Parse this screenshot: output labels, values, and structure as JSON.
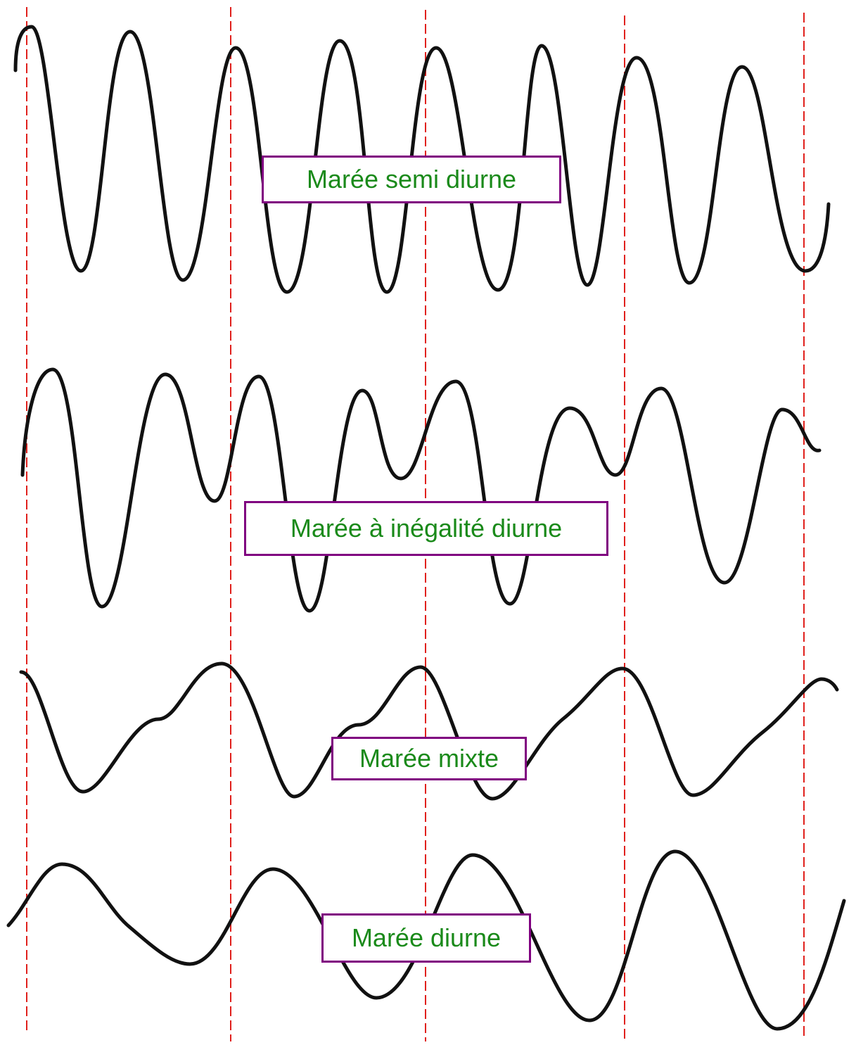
{
  "labels": {
    "semi_diurne": "Marée semi diurne",
    "inegalite_diurne": "Marée à inégalité diurne",
    "mixte": "Marée mixte",
    "diurne": "Marée diurne"
  },
  "colors": {
    "curve": "#111111",
    "divider": "#e0201c",
    "label_border": "#800080",
    "label_text": "#1a8a1a",
    "background": "#ffffff"
  }
}
